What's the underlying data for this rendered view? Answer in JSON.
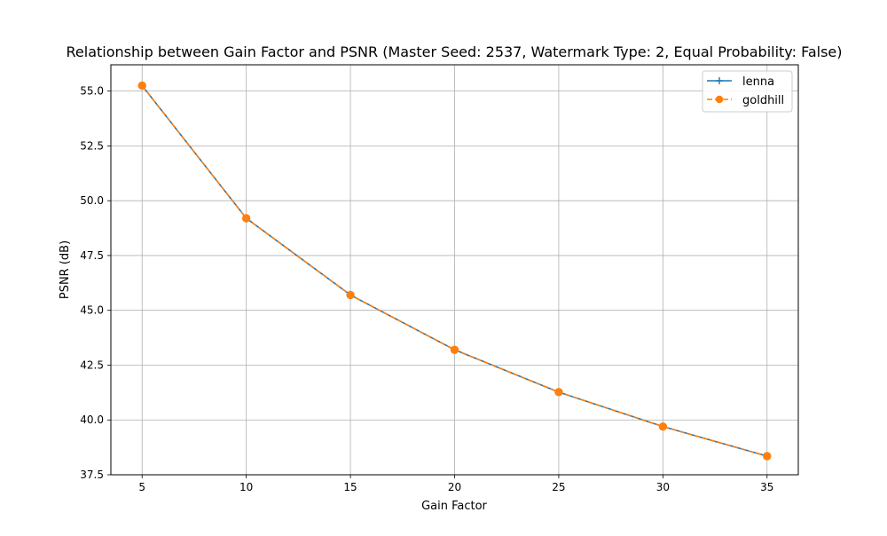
{
  "chart_data": {
    "type": "line",
    "title": "Relationship between Gain Factor and PSNR (Master Seed: 2537, Watermark Type: 2, Equal Probability: False)",
    "xlabel": "Gain Factor",
    "ylabel": "PSNR (dB)",
    "x": [
      5,
      10,
      15,
      20,
      25,
      30,
      35
    ],
    "xlim": [
      3.5,
      36.5
    ],
    "ylim": [
      37.5,
      56.2
    ],
    "xticks": [
      5,
      10,
      15,
      20,
      25,
      30,
      35
    ],
    "xtick_labels": [
      "5",
      "10",
      "15",
      "20",
      "25",
      "30",
      "35"
    ],
    "yticks": [
      37.5,
      40.0,
      42.5,
      45.0,
      47.5,
      50.0,
      52.5,
      55.0
    ],
    "ytick_labels": [
      "37.5",
      "40.0",
      "42.5",
      "45.0",
      "47.5",
      "50.0",
      "52.5",
      "55.0"
    ],
    "grid": true,
    "legend_position": "top-right",
    "series": [
      {
        "name": "lenna",
        "values": [
          55.25,
          49.2,
          45.7,
          43.2,
          41.27,
          39.7,
          38.35
        ],
        "color": "#1f77b4",
        "linestyle": "solid",
        "marker": "plus"
      },
      {
        "name": "goldhill",
        "values": [
          55.25,
          49.2,
          45.7,
          43.2,
          41.27,
          39.7,
          38.35
        ],
        "color": "#ff7f0e",
        "linestyle": "dashed",
        "marker": "circle"
      }
    ]
  }
}
